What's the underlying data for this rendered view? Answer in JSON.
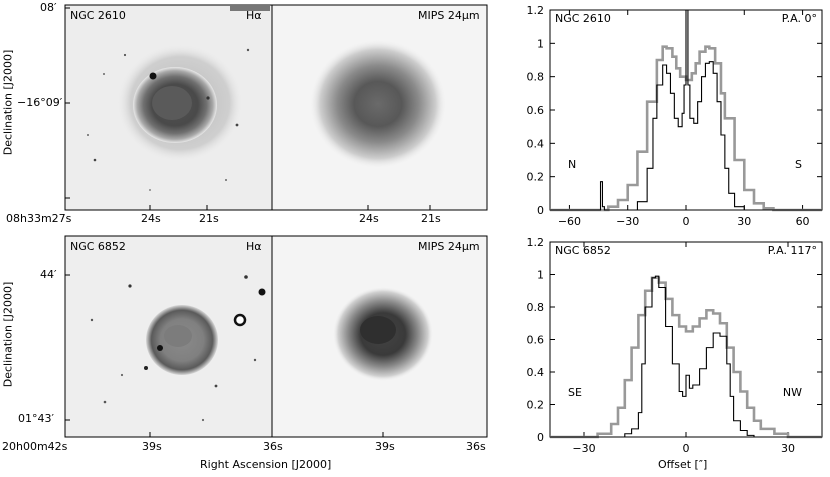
{
  "figure": {
    "top_row": {
      "object": "NGC 2610",
      "halpha_label": "Hα",
      "mips_label": "MIPS 24μm",
      "dec_top": "08′",
      "dec_center": "−16°09′",
      "ra_ticks": [
        "08h33m27s",
        "24s",
        "21s"
      ],
      "ra_ticks_mips": [
        "24s",
        "21s"
      ]
    },
    "bottom_row": {
      "object": "NGC 6852",
      "halpha_label": "Hα",
      "mips_label": "MIPS 24μm",
      "dec_top": "44′",
      "dec_bottom": "01°43′",
      "ra_ticks": [
        "20h00m42s",
        "39s",
        "36s"
      ],
      "ra_ticks_mips": [
        "39s",
        "36s"
      ]
    },
    "ylabel": "Declination [J2000]",
    "xlabel": "Right Ascension [J2000]"
  },
  "chart_data": [
    {
      "type": "line",
      "object_label": "NGC 2610",
      "pa_label": "P.A. 0°",
      "left_dir": "N",
      "right_dir": "S",
      "xlim": [
        -70,
        70
      ],
      "ylim": [
        0,
        1.2
      ],
      "xticks": [
        -60,
        -30,
        0,
        30,
        60
      ],
      "yticks": [
        0,
        0.2,
        0.4,
        0.6,
        0.8,
        1,
        1.2
      ],
      "series": [
        {
          "color": "#999999",
          "x": [
            -70,
            -45,
            -40,
            -35,
            -30,
            -25,
            -20,
            -15,
            -12,
            -10,
            -7,
            -5,
            -3,
            0,
            3,
            5,
            7,
            10,
            12,
            15,
            18,
            20,
            25,
            30,
            35,
            40,
            45,
            70
          ],
          "y": [
            0,
            0,
            0.02,
            0.06,
            0.15,
            0.35,
            0.65,
            0.9,
            0.98,
            0.97,
            0.92,
            0.85,
            0.8,
            0.78,
            0.82,
            0.88,
            0.95,
            0.98,
            0.97,
            0.88,
            0.7,
            0.55,
            0.3,
            0.12,
            0.04,
            0.01,
            0,
            0
          ]
        },
        {
          "color": "#000000",
          "x": [
            -70,
            -45,
            -44,
            -43,
            -42,
            -40,
            -30,
            -25,
            -20,
            -17,
            -15,
            -12,
            -10,
            -8,
            -6,
            -4,
            -2,
            -1,
            0,
            1,
            2,
            4,
            6,
            8,
            10,
            12,
            14,
            16,
            18,
            20,
            22,
            25,
            30,
            70
          ],
          "y": [
            0,
            0,
            0.17,
            0.02,
            0,
            0,
            0,
            0.05,
            0.25,
            0.55,
            0.75,
            0.87,
            0.82,
            0.7,
            0.55,
            0.5,
            0.58,
            0.75,
            1.2,
            0.75,
            0.55,
            0.52,
            0.65,
            0.8,
            0.88,
            0.89,
            0.82,
            0.65,
            0.45,
            0.25,
            0.1,
            0.02,
            0,
            0
          ]
        }
      ]
    },
    {
      "type": "line",
      "object_label": "NGC 6852",
      "pa_label": "P.A. 117°",
      "left_dir": "SE",
      "right_dir": "NW",
      "xlim": [
        -40,
        40
      ],
      "ylim": [
        0,
        1.2
      ],
      "xticks": [
        -30,
        0,
        30
      ],
      "yticks": [
        0,
        0.2,
        0.4,
        0.6,
        0.8,
        1,
        1.2
      ],
      "series": [
        {
          "color": "#999999",
          "x": [
            -40,
            -30,
            -26,
            -22,
            -20,
            -18,
            -16,
            -14,
            -12,
            -10,
            -8,
            -6,
            -4,
            -2,
            0,
            2,
            4,
            6,
            8,
            10,
            12,
            14,
            16,
            18,
            20,
            22,
            26,
            30,
            40
          ],
          "y": [
            0,
            0,
            0.02,
            0.08,
            0.18,
            0.35,
            0.55,
            0.75,
            0.9,
            0.98,
            0.95,
            0.85,
            0.75,
            0.68,
            0.65,
            0.68,
            0.73,
            0.78,
            0.76,
            0.7,
            0.55,
            0.4,
            0.28,
            0.18,
            0.1,
            0.05,
            0.02,
            0,
            0
          ]
        },
        {
          "color": "#000000",
          "x": [
            -40,
            -20,
            -18,
            -16,
            -14,
            -13,
            -12,
            -10,
            -9,
            -8,
            -6,
            -4,
            -2,
            -1,
            0,
            1,
            2,
            4,
            6,
            8,
            10,
            12,
            13,
            14,
            16,
            18,
            20,
            40
          ],
          "y": [
            0,
            0,
            0.02,
            0.05,
            0.15,
            0.45,
            0.8,
            0.98,
            0.99,
            0.92,
            0.68,
            0.45,
            0.28,
            0.25,
            0.38,
            0.3,
            0.32,
            0.42,
            0.55,
            0.64,
            0.62,
            0.45,
            0.25,
            0.1,
            0.04,
            0.01,
            0,
            0
          ]
        }
      ]
    }
  ],
  "right_xlabel": "Offset [″]"
}
